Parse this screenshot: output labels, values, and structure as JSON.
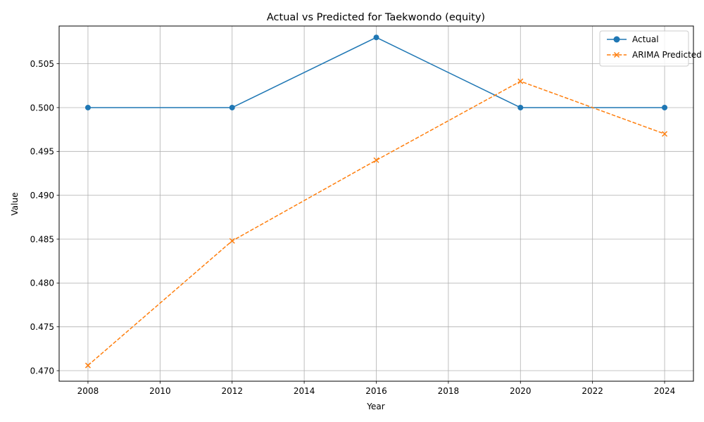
{
  "chart_data": {
    "type": "line",
    "title": "Actual vs Predicted for Taekwondo (equity)",
    "xlabel": "Year",
    "ylabel": "Value",
    "xlim": [
      2007.2,
      2024.8
    ],
    "ylim": [
      0.4688,
      0.5093
    ],
    "xticks": [
      2008,
      2010,
      2012,
      2014,
      2016,
      2018,
      2020,
      2022,
      2024
    ],
    "yticks": [
      0.47,
      0.475,
      0.48,
      0.485,
      0.49,
      0.495,
      0.5,
      0.505
    ],
    "ytick_labels": [
      "0.470",
      "0.475",
      "0.480",
      "0.485",
      "0.490",
      "0.495",
      "0.500",
      "0.505"
    ],
    "grid": true,
    "legend_position": "top-right",
    "x": [
      2008,
      2012,
      2016,
      2020,
      2024
    ],
    "series": [
      {
        "name": "Actual",
        "values": [
          0.5,
          0.5,
          0.508,
          0.5,
          0.5
        ],
        "color": "#1f77b4",
        "line_style": "solid",
        "marker": "circle"
      },
      {
        "name": "ARIMA Predicted",
        "values": [
          0.4706,
          0.4848,
          0.494,
          0.503,
          0.497
        ],
        "color": "#ff7f0e",
        "line_style": "dashed",
        "marker": "x"
      }
    ]
  }
}
